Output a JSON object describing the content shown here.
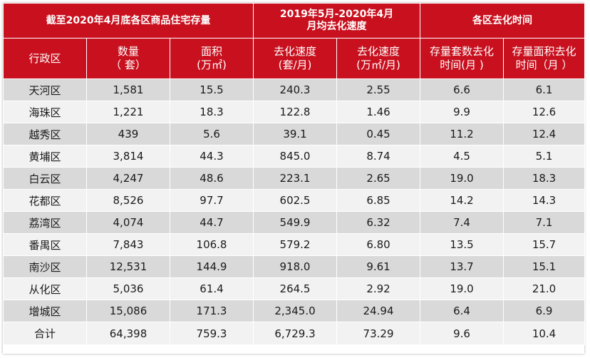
{
  "table": {
    "group_headers": [
      {
        "lines": [
          "截至2020年4月底各区商品住宅存量"
        ]
      },
      {
        "lines": [
          "2019年5月-2020年4月",
          "月均去化速度"
        ]
      },
      {
        "lines": [
          "各区去化时间"
        ]
      }
    ],
    "column_headers": [
      {
        "lines": [
          "行政区"
        ]
      },
      {
        "lines": [
          "数量",
          "（ 套）"
        ]
      },
      {
        "lines": [
          "面积",
          "(万㎡)"
        ]
      },
      {
        "lines": [
          "去化速度",
          "(套/月)"
        ]
      },
      {
        "lines": [
          "去化速度",
          "(万㎡/月)"
        ]
      },
      {
        "lines": [
          "存量套数去化",
          "时间(月 )"
        ]
      },
      {
        "lines": [
          "存量面积去化",
          "时间（月 ）"
        ]
      }
    ],
    "rows": [
      [
        "天河区",
        "1,581",
        "15.5",
        "240.3",
        "2.55",
        "6.6",
        "6.1"
      ],
      [
        "海珠区",
        "1,221",
        "18.3",
        "122.8",
        "1.46",
        "9.9",
        "12.6"
      ],
      [
        "越秀区",
        "439",
        "5.6",
        "39.1",
        "0.45",
        "11.2",
        "12.4"
      ],
      [
        "黄埔区",
        "3,814",
        "44.3",
        "845.0",
        "8.74",
        "4.5",
        "5.1"
      ],
      [
        "白云区",
        "4,247",
        "48.6",
        "223.1",
        "2.65",
        "19.0",
        "18.3"
      ],
      [
        "花都区",
        "8,526",
        "97.7",
        "602.5",
        "6.85",
        "14.2",
        "14.3"
      ],
      [
        "荔湾区",
        "4,074",
        "44.7",
        "549.9",
        "6.32",
        "7.4",
        "7.1"
      ],
      [
        "番禺区",
        "7,843",
        "106.8",
        "579.2",
        "6.80",
        "13.5",
        "15.7"
      ],
      [
        "南沙区",
        "12,531",
        "144.9",
        "918.0",
        "9.61",
        "13.7",
        "15.1"
      ],
      [
        "从化区",
        "5,036",
        "61.4",
        "264.5",
        "2.92",
        "19.0",
        "21.0"
      ],
      [
        "增城区",
        "15,086",
        "171.3",
        "2,345.0",
        "24.94",
        "6.4",
        "6.9"
      ],
      [
        "合计",
        "64,398",
        "759.3",
        "6,729.3",
        "73.29",
        "9.6",
        "10.4"
      ]
    ]
  },
  "colors": {
    "header_red": "#c8101e",
    "row_dark": "#d9d9d9",
    "row_light": "#f2f2f2"
  }
}
